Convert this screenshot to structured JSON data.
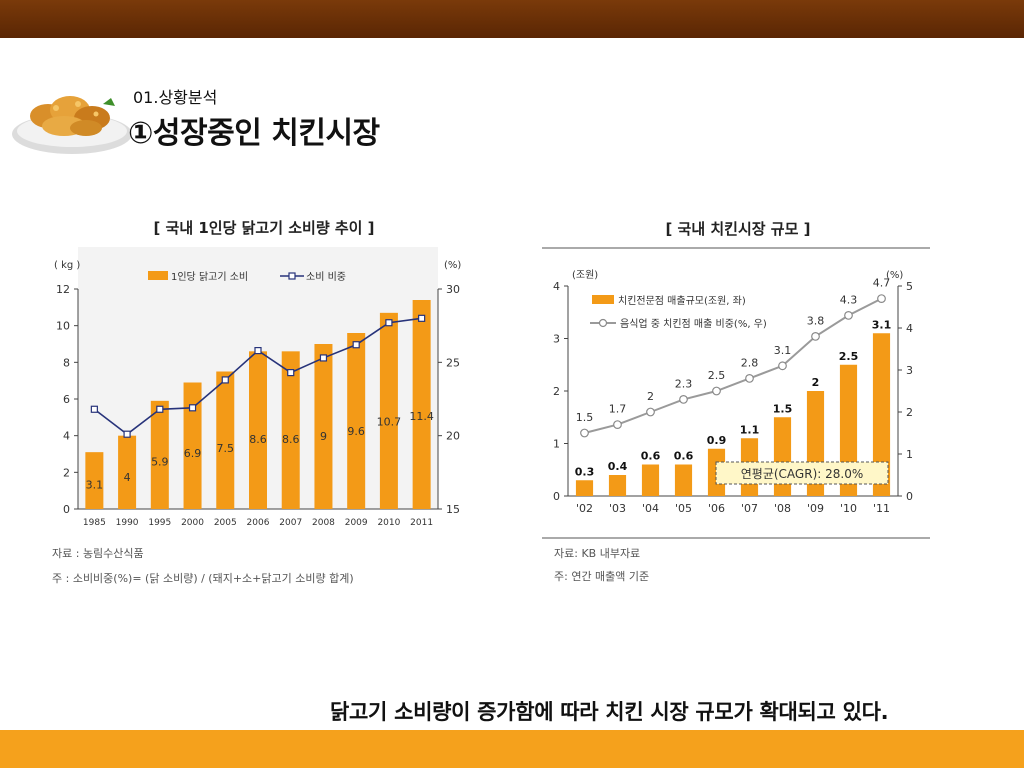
{
  "header": {
    "section": "01.상황분석",
    "title": "①성장중인 치킨시장"
  },
  "caption": "닭고기 소비량이 증가함에 따라 치킨 시장 규모가 확대되고 있다.",
  "colors": {
    "top_bar": "#6a300a",
    "bottom_bar": "#f5a11c",
    "bar": "#f39a17",
    "chart1_line": "#27337a",
    "chart2_line": "#9a9a9a",
    "panel_bg": "#f3f3f3"
  },
  "logo": {
    "icon": "fried-chicken-plate-icon"
  },
  "chart_data": [
    {
      "type": "bar",
      "title": "[ 국내 1인당 닭고기 소비량 추이 ]",
      "y_left_unit": "( kg )",
      "y_right_unit": "(%)",
      "legend": {
        "bar": "1인당 닭고기 소비",
        "line": "소비 비중",
        "placement": "top"
      },
      "categories": [
        "1985",
        "1990",
        "1995",
        "2000",
        "2005",
        "2006",
        "2007",
        "2008",
        "2009",
        "2010",
        "2011"
      ],
      "series": [
        {
          "name": "1인당 닭고기 소비",
          "axis": "left",
          "values": [
            3.1,
            4.0,
            5.9,
            6.9,
            7.5,
            8.6,
            8.6,
            9.0,
            9.6,
            10.7,
            11.4
          ]
        },
        {
          "name": "소비 비중",
          "axis": "right",
          "values": [
            21.8,
            20.1,
            21.8,
            21.9,
            23.8,
            25.8,
            24.3,
            25.3,
            26.2,
            27.7,
            28.0
          ]
        }
      ],
      "ylim_left": [
        0,
        12
      ],
      "yticks_left": [
        "0",
        "2",
        "4",
        "6",
        "8",
        "10",
        "12"
      ],
      "ylim_right": [
        15,
        30
      ],
      "yticks_right": [
        "15",
        "20",
        "25",
        "30"
      ],
      "grid": false,
      "source": "자료 :  농림수산식품",
      "note": "주 : 소비비중(%)= (닭 소비량) / (돼지+소+닭고기 소비량 합계)"
    },
    {
      "type": "bar",
      "title": "[ 국내 치킨시장 규모 ]",
      "y_left_unit": "(조원)",
      "y_right_unit": "(%)",
      "legend": {
        "bar": "치킨전문점 매출규모(조원, 좌)",
        "line": "음식업 중 치킨점 매출 비중(%, 우)",
        "placement": "top-left"
      },
      "categories": [
        "'02",
        "'03",
        "'04",
        "'05",
        "'06",
        "'07",
        "'08",
        "'09",
        "'10",
        "'11"
      ],
      "series": [
        {
          "name": "치킨전문점 매출규모(조원, 좌)",
          "axis": "left",
          "values": [
            0.3,
            0.4,
            0.6,
            0.6,
            0.9,
            1.1,
            1.5,
            2.0,
            2.5,
            3.1
          ]
        },
        {
          "name": "음식업 중 치킨점 매출 비중(%, 우)",
          "axis": "right",
          "values": [
            1.5,
            1.7,
            2.0,
            2.3,
            2.5,
            2.8,
            3.1,
            3.8,
            4.3,
            4.7
          ]
        }
      ],
      "ylim_left": [
        0,
        4
      ],
      "yticks_left": [
        "0",
        "1",
        "2",
        "3",
        "4"
      ],
      "ylim_right": [
        0,
        5
      ],
      "yticks_right": [
        "0",
        "1",
        "2",
        "3",
        "4",
        "5"
      ],
      "annotation": "연평균(CAGR): 28.0%",
      "grid": false,
      "source": "자료: KB 내부자료",
      "note": "주: 연간 매출액 기준"
    }
  ]
}
